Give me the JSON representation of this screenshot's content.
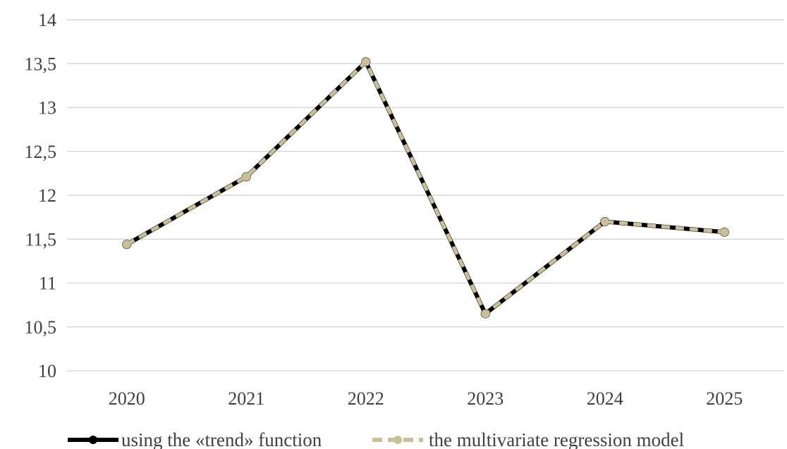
{
  "chart_data": {
    "type": "line",
    "title": "",
    "xlabel": "",
    "ylabel": "",
    "categories": [
      "2020",
      "2021",
      "2022",
      "2023",
      "2024",
      "2025"
    ],
    "ylim": [
      10,
      14
    ],
    "yticks": [
      10,
      10.5,
      11,
      11.5,
      12,
      12.5,
      13,
      13.5,
      14
    ],
    "ytick_labels": [
      "10",
      "10,5",
      "11",
      "11,5",
      "12",
      "12,5",
      "13",
      "13,5",
      "14"
    ],
    "grid": "horizontal",
    "legend_position": "bottom",
    "series": [
      {
        "name": "using the «trend» function",
        "values": [
          11.44,
          12.21,
          13.52,
          10.65,
          11.7,
          11.58
        ],
        "color": "#000000",
        "line_style": "solid",
        "marker": "circle"
      },
      {
        "name": "the multivariate regression model",
        "values": [
          11.44,
          12.21,
          13.52,
          10.65,
          11.7,
          11.58
        ],
        "color": "#c9c09a",
        "line_style": "dashed",
        "marker": "circle"
      }
    ]
  }
}
